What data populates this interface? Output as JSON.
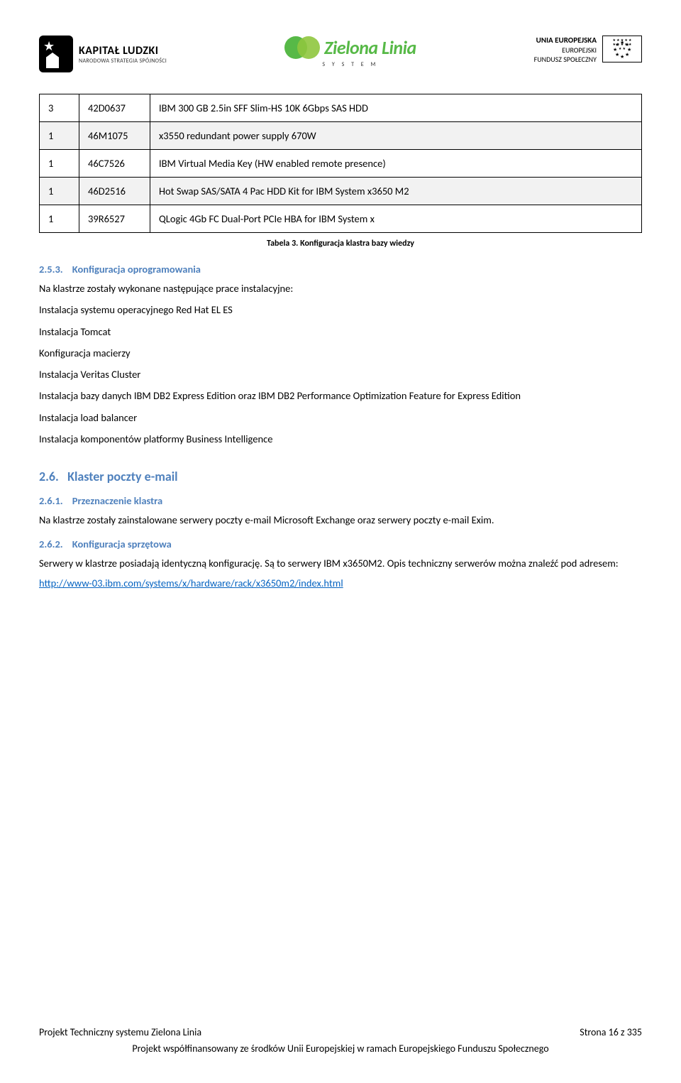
{
  "header": {
    "kl_title": "KAPITAŁ LUDZKI",
    "kl_sub": "NARODOWA STRATEGIA SPÓJNOŚCI",
    "zl_title": "Zielona Linia",
    "zl_sub": "S Y S T E M",
    "eu_line1": "UNIA EUROPEJSKA",
    "eu_line2": "EUROPEJSKI",
    "eu_line3": "FUNDUSZ SPOŁECZNY"
  },
  "table": {
    "rows": [
      {
        "qty": "3",
        "code": "42D0637",
        "desc": "IBM 300 GB 2.5in SFF Slim-HS 10K 6Gbps SAS HDD",
        "hl": false
      },
      {
        "qty": "1",
        "code": "46M1075",
        "desc": "x3550 redundant power supply 670W",
        "hl": true
      },
      {
        "qty": "1",
        "code": "46C7526",
        "desc": "IBM Virtual Media Key (HW enabled remote presence)",
        "hl": false
      },
      {
        "qty": "1",
        "code": "46D2516",
        "desc": "Hot Swap SAS/SATA 4 Pac HDD Kit for IBM System x3650 M2",
        "hl": true
      },
      {
        "qty": "1",
        "code": "39R6527",
        "desc": "QLogic 4Gb FC Dual-Port PCIe HBA for IBM System x",
        "hl": false
      }
    ],
    "caption": "Tabela 3. Konfiguracja klastra bazy wiedzy"
  },
  "s253": {
    "num": "2.5.3.",
    "title": "Konfiguracja oprogramowania",
    "intro": "Na klastrze zostały wykonane następujące prace instalacyjne:",
    "items": [
      "Instalacja systemu operacyjnego Red Hat EL ES",
      "Instalacja Tomcat",
      "Konfiguracja macierzy",
      "Instalacja Veritas Cluster",
      "Instalacja bazy danych IBM DB2 Express Edition oraz IBM DB2 Performance Optimization Feature for Express Edition",
      "Instalacja load balancer",
      "Instalacja komponentów platformy Business Intelligence"
    ]
  },
  "s26": {
    "num": "2.6.",
    "title": "Klaster poczty e-mail"
  },
  "s261": {
    "num": "2.6.1.",
    "title": "Przeznaczenie klastra",
    "body": "Na klastrze zostały zainstalowane  serwery poczty e-mail Microsoft Exchange oraz serwery poczty e-mail Exim."
  },
  "s262": {
    "num": "2.6.2.",
    "title": "Konfiguracja sprzętowa",
    "body": "Serwery w klastrze posiadają identyczną konfigurację. Są to serwery IBM x3650M2. Opis techniczny serwerów można znaleźć pod adresem:",
    "link": "http://www-03.ibm.com/systems/x/hardware/rack/x3650m2/index.html"
  },
  "footer": {
    "left": "Projekt Techniczny systemu Zielona Linia",
    "right": "Strona 16 z 335",
    "bottom": "Projekt współfinansowany ze środków Unii Europejskiej w ramach Europejskiego Funduszu Społecznego"
  },
  "colors": {
    "heading_blue": "#4f81bd",
    "link_blue": "#0563c1",
    "row_hl": "#f2f2f2",
    "zl_green1": "#57b947",
    "zl_green2": "#8fc73e"
  }
}
